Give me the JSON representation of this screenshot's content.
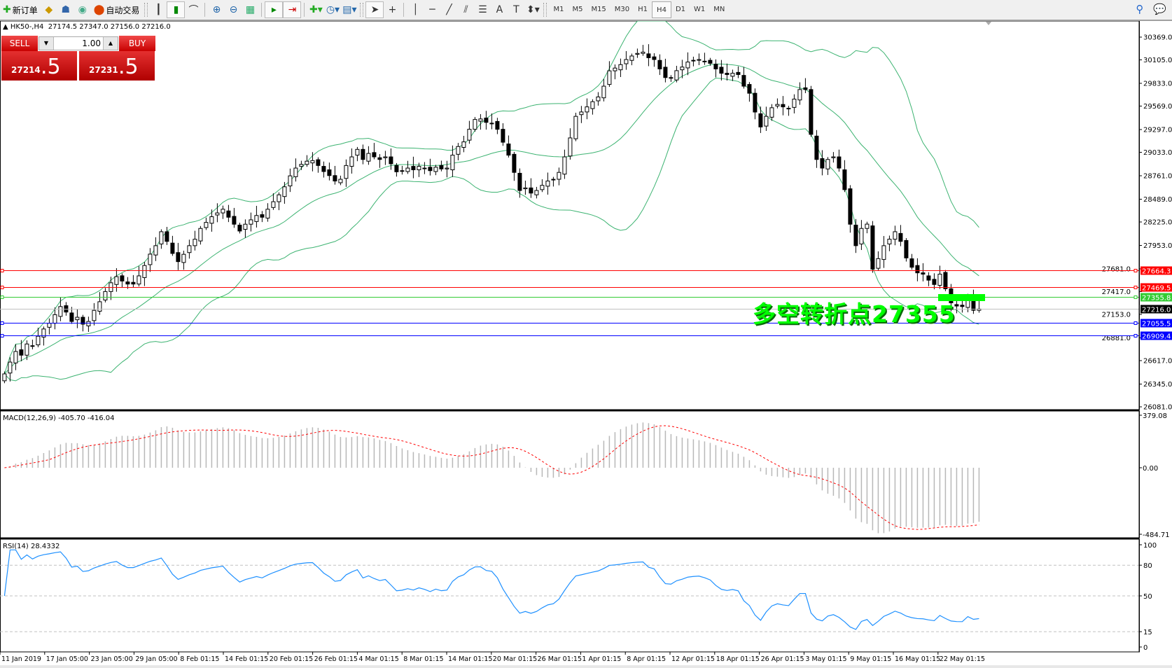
{
  "toolbar": {
    "new_order": "新订单",
    "auto_trading": "自动交易",
    "timeframes": [
      "M1",
      "M5",
      "M15",
      "M30",
      "H1",
      "H4",
      "D1",
      "W1",
      "MN"
    ],
    "active_timeframe": "H4"
  },
  "header": {
    "symbol": "HK50-,H4",
    "ohlc": "27174.5 27347.0 27156.0 27216.0"
  },
  "trade_panel": {
    "sell_label": "SELL",
    "buy_label": "BUY",
    "lot": "1.00",
    "sell_main": "27214",
    "sell_frac": ".5",
    "buy_main": "27231",
    "buy_frac": ".5"
  },
  "annotation": "多空转折点27355",
  "colors": {
    "up_candle": "#ffffff",
    "down_candle": "#000000",
    "bands": "#3cb371",
    "rsi": "#1e90ff",
    "macd_signal": "#ff0000",
    "annotation": "#00ff00"
  },
  "price_axis": [
    "30369.0",
    "30105.0",
    "29833.0",
    "29569.0",
    "29297.0",
    "29033.0",
    "28761.0",
    "28489.0",
    "28225.0",
    "27953.0",
    "27681.0",
    "27417.0",
    "27153.0",
    "26881.0",
    "26617.0",
    "26345.0",
    "26081.0"
  ],
  "levels": [
    {
      "price": 27664.3,
      "label": "27664.3",
      "color": "#ff0000"
    },
    {
      "price": 27469.5,
      "label": "27469.5",
      "color": "#ff0000"
    },
    {
      "price": 27355.8,
      "label": "27355.8",
      "color": "#33cc33"
    },
    {
      "price": 27216.0,
      "label": "27216.0",
      "color": "#000000",
      "line": "#c0c0c0"
    },
    {
      "price": 27055.5,
      "label": "27055.5",
      "color": "#0000ff"
    },
    {
      "price": 26909.4,
      "label": "26909.4",
      "color": "#0000ff"
    }
  ],
  "macd": {
    "label": "MACD(12,26,9) -405.70 -416.04",
    "axis": [
      "379.08",
      "0.00",
      "-484.71"
    ]
  },
  "rsi": {
    "label": "RSI(14) 28.4332",
    "axis": [
      "100",
      "80",
      "50",
      "15",
      "0"
    ]
  },
  "time_axis": [
    "11 Jan 2019",
    "17 Jan 05:00",
    "23 Jan 05:00",
    "29 Jan 05:00",
    "8 Feb 01:15",
    "14 Feb 01:15",
    "20 Feb 01:15",
    "26 Feb 01:15",
    "4 Mar 01:15",
    "8 Mar 01:15",
    "14 Mar 01:15",
    "20 Mar 01:15",
    "26 Mar 01:15",
    "1 Apr 01:15",
    "8 Apr 01:15",
    "12 Apr 01:15",
    "18 Apr 01:15",
    "26 Apr 01:15",
    "3 May 01:15",
    "9 May 01:15",
    "16 May 01:15",
    "22 May 01:15"
  ],
  "chart_data": {
    "type": "candlestick",
    "closes": [
      26463,
      26600,
      26723,
      26680,
      26810,
      26790,
      26900,
      26984,
      27050,
      27150,
      27244,
      27180,
      27071,
      27120,
      27040,
      27071,
      27200,
      27300,
      27418,
      27520,
      27591,
      27540,
      27505,
      27505,
      27600,
      27720,
      27852,
      27950,
      28112,
      28000,
      27860,
      27765,
      27850,
      27950,
      28025,
      28150,
      28220,
      28286,
      28330,
      28373,
      28280,
      28199,
      28120,
      28199,
      28250,
      28300,
      28280,
      28373,
      28460,
      28540,
      28633,
      28760,
      28850,
      28893,
      28930,
      28937,
      28880,
      28810,
      28763,
      28700,
      28720,
      28880,
      28980,
      29067,
      28950,
      29020,
      28980,
      28950,
      28980,
      28900,
      28807,
      28820,
      28850,
      28830,
      28870,
      28850,
      28820,
      28860,
      28840,
      28850,
      29000,
      29100,
      29154,
      29300,
      29414,
      29420,
      29380,
      29371,
      29300,
      29150,
      29000,
      28800,
      28590,
      28620,
      28560,
      28590,
      28650,
      28700,
      28720,
      28800,
      28980,
      29200,
      29450,
      29501,
      29560,
      29620,
      29675,
      29800,
      29978,
      30010,
      30050,
      30109,
      30150,
      30180,
      30195,
      30130,
      30109,
      30000,
      29900,
      29892,
      29980,
      30022,
      30080,
      30100,
      30109,
      30090,
      30065,
      30000,
      29950,
      29935,
      29950,
      29935,
      29800,
      29718,
      29500,
      29327,
      29450,
      29550,
      29588,
      29560,
      29544,
      29650,
      29761,
      29761,
      29241,
      28950,
      28850,
      28950,
      28980,
      28850,
      28600,
      28199,
      27950,
      28150,
      28200,
      27678,
      27800,
      27950,
      28025,
      28112,
      28000,
      27808,
      27700,
      27635,
      27620,
      27550,
      27500,
      27620,
      27450,
      27287,
      27250,
      27244,
      27350,
      27201,
      27216
    ],
    "price_range": [
      26048,
      30547
    ],
    "indicators": [
      "Bollinger Bands(20,2)",
      "MACD(12,26,9)",
      "RSI(14)"
    ]
  }
}
